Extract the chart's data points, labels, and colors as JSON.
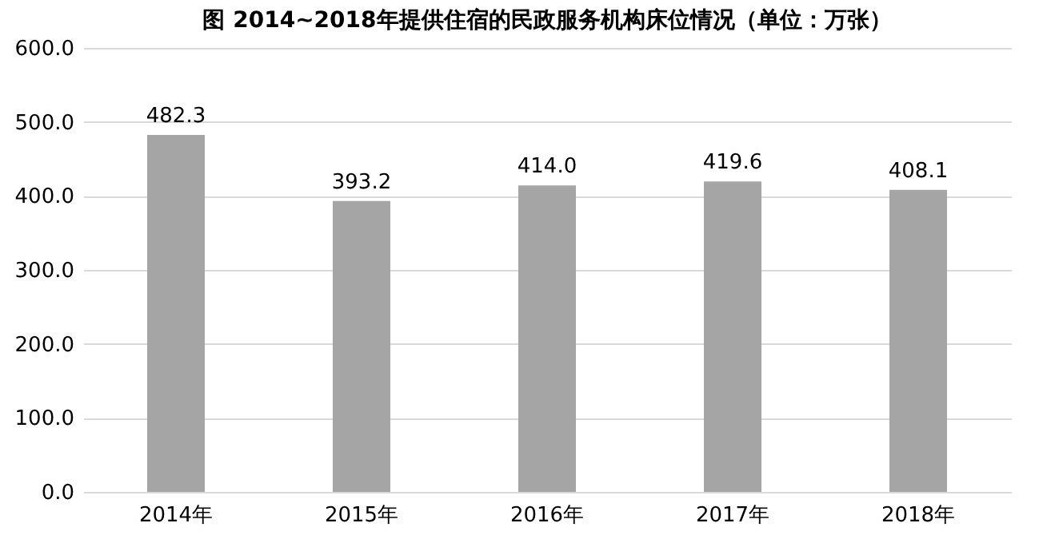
{
  "chart_data": {
    "type": "bar",
    "title": "图 2014~2018年提供住宿的民政服务机构床位情况（单位：万张）",
    "categories": [
      "2014年",
      "2015年",
      "2016年",
      "2017年",
      "2018年"
    ],
    "values": [
      482.3,
      393.2,
      414.0,
      419.6,
      408.1
    ],
    "value_labels": [
      "482.3",
      "393.2",
      "414.0",
      "419.6",
      "408.1"
    ],
    "color": "#a5a5a5",
    "ylim": [
      0,
      600
    ],
    "yticks": [
      {
        "value": 0,
        "label": "0.0"
      },
      {
        "value": 100,
        "label": "100.0"
      },
      {
        "value": 200,
        "label": "200.0"
      },
      {
        "value": 300,
        "label": "300.0"
      },
      {
        "value": 400,
        "label": "400.0"
      },
      {
        "value": 500,
        "label": "500.0"
      },
      {
        "value": 600,
        "label": "600.0"
      }
    ],
    "grid": "y"
  }
}
